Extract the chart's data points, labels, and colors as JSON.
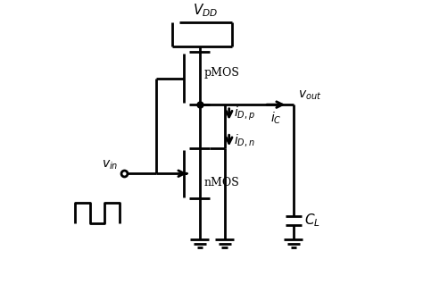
{
  "bg_color": "#ffffff",
  "line_color": "#000000",
  "line_width": 2.0,
  "fig_width": 4.74,
  "fig_height": 3.37,
  "dpi": 100,
  "pmos_label": "pMOS",
  "nmos_label": "nMOS",
  "vdd_label": "$V_{DD}$",
  "vin_label": "$v_{in}$",
  "vout_label": "$v_{out}$",
  "idp_label": "$i_{D,p}$",
  "idn_label": "$i_{D,n}$",
  "ic_label": "$i_C$",
  "cl_label": "$C_L$"
}
